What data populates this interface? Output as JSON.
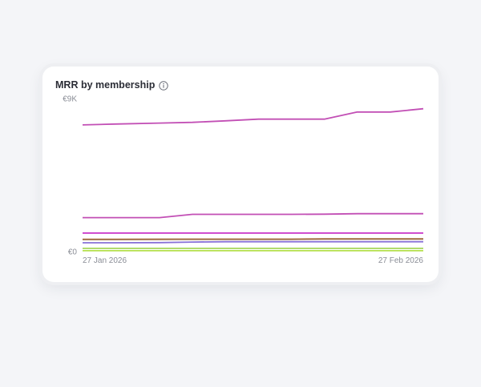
{
  "card": {
    "title": "MRR by membership",
    "info_icon": "info-circle-icon"
  },
  "chart_data": {
    "type": "line",
    "title": "MRR by membership",
    "xlabel": "",
    "ylabel": "",
    "y_tick_labels": [
      "€0",
      "€9K"
    ],
    "x_tick_labels": [
      "27 Jan 2026",
      "27 Feb 2026"
    ],
    "x": [
      "2026-01-27",
      "2026-01-30",
      "2026-02-03",
      "2026-02-06",
      "2026-02-09",
      "2026-02-12",
      "2026-02-15",
      "2026-02-18",
      "2026-02-21",
      "2026-02-24",
      "2026-02-27"
    ],
    "ylim": [
      0,
      9000
    ],
    "grid": false,
    "legend": "none",
    "series": [
      {
        "color": "#c24fb5",
        "values": [
          7450,
          7500,
          7560,
          7600,
          7690,
          7790,
          7790,
          7790,
          8210,
          8210,
          8400
        ]
      },
      {
        "color": "#c24fb5",
        "values": [
          2000,
          2000,
          2000,
          2190,
          2190,
          2190,
          2190,
          2200,
          2230,
          2230,
          2230
        ]
      },
      {
        "color": "#c832c8",
        "values": [
          1090,
          1090,
          1090,
          1090,
          1090,
          1090,
          1090,
          1090,
          1090,
          1090,
          1090
        ]
      },
      {
        "color": "#d6733a",
        "values": [
          720,
          720,
          720,
          730,
          730,
          730,
          730,
          750,
          750,
          750,
          750
        ]
      },
      {
        "color": "#9c6e45",
        "values": [
          710,
          710,
          720,
          720,
          720,
          720,
          720,
          740,
          740,
          740,
          740
        ]
      },
      {
        "color": "#8870d8",
        "values": [
          520,
          520,
          530,
          560,
          580,
          580,
          580,
          580,
          580,
          580,
          580
        ]
      },
      {
        "color": "#a5d65a",
        "values": [
          190,
          190,
          190,
          190,
          190,
          190,
          190,
          190,
          190,
          190,
          190
        ]
      },
      {
        "color": "#b5e04d",
        "values": [
          50,
          50,
          50,
          50,
          50,
          50,
          50,
          50,
          50,
          50,
          50
        ]
      }
    ]
  }
}
